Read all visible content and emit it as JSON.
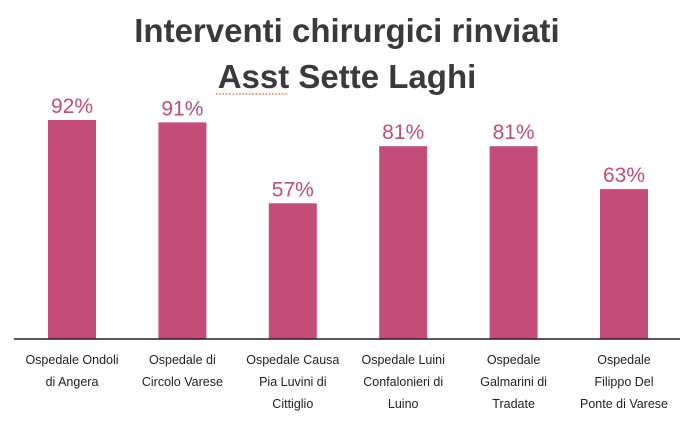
{
  "chart_data": {
    "type": "bar",
    "title_lines": [
      "Interventi chirurgici rinviati",
      "Asst Sette Laghi"
    ],
    "categories": [
      [
        "Ospedale Ondoli",
        "di Angera"
      ],
      [
        "Ospedale di",
        "Circolo Varese"
      ],
      [
        "Ospedale Causa",
        "Pia Luvini di",
        "Cittiglio"
      ],
      [
        "Ospedale Luini",
        "Confalonieri di",
        "Luino"
      ],
      [
        "Ospedale",
        "Galmarini di",
        "Tradate"
      ],
      [
        "Ospedale",
        "Filippo Del",
        "Ponte di Varese"
      ]
    ],
    "values": [
      92,
      91,
      57,
      81,
      81,
      63
    ],
    "value_labels": [
      "92%",
      "91%",
      "57%",
      "81%",
      "81%",
      "63%"
    ],
    "unit": "%",
    "ylim": [
      0,
      100
    ],
    "grid": false,
    "legend": "none",
    "colors": {
      "bar": "#c34d78",
      "label": "#c34d78",
      "title": "#3a3a3a",
      "axis": "#222222"
    }
  }
}
